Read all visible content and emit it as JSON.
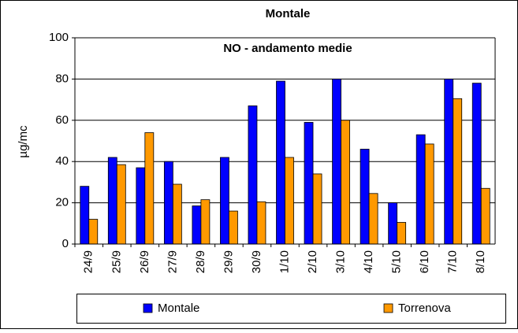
{
  "chart_data": {
    "type": "bar",
    "title": "Montale",
    "subtitle": "NO - andamento medie",
    "y_label": "µg/mc",
    "categories": [
      "24/9",
      "25/9",
      "26/9",
      "27/9",
      "28/9",
      "29/9",
      "30/9",
      "1/10",
      "2/10",
      "3/10",
      "4/10",
      "5/10",
      "6/10",
      "7/10",
      "8/10"
    ],
    "series": [
      {
        "name": "Montale",
        "color": "#0000ff",
        "values": [
          28,
          42,
          37,
          40,
          18.5,
          42,
          67,
          79,
          59,
          80,
          46,
          20,
          53,
          80,
          78
        ]
      },
      {
        "name": "Torrenova",
        "color": "#ff9900",
        "values": [
          12,
          38.5,
          54,
          29,
          21.5,
          16,
          20.5,
          42,
          34,
          60,
          24.5,
          10.5,
          48.5,
          70.5,
          27
        ]
      }
    ],
    "ylim": [
      0,
      100
    ],
    "yticks": [
      0,
      20,
      40,
      60,
      80,
      100
    ],
    "grid": true,
    "legend": "bottom"
  }
}
